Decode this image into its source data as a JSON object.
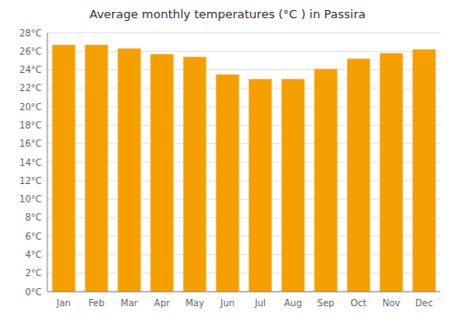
{
  "chart_data": {
    "type": "bar",
    "title": "Average monthly temperatures (°C ) in Passira",
    "categories": [
      "Jan",
      "Feb",
      "Mar",
      "Apr",
      "May",
      "Jun",
      "Jul",
      "Aug",
      "Sep",
      "Oct",
      "Nov",
      "Dec"
    ],
    "values": [
      26.7,
      26.7,
      26.3,
      25.7,
      25.4,
      23.5,
      23.0,
      23.0,
      24.1,
      25.2,
      25.8,
      26.2
    ],
    "color": "#F5A000",
    "ylim": [
      0,
      28
    ],
    "yticks": [
      {
        "value": 0,
        "label": "0°C"
      },
      {
        "value": 2,
        "label": "2°C"
      },
      {
        "value": 4,
        "label": "4°C"
      },
      {
        "value": 6,
        "label": "6°C"
      },
      {
        "value": 8,
        "label": "8°C"
      },
      {
        "value": 10,
        "label": "10°C"
      },
      {
        "value": 12,
        "label": "12°C"
      },
      {
        "value": 14,
        "label": "14°C"
      },
      {
        "value": 16,
        "label": "16°C"
      },
      {
        "value": 18,
        "label": "18°C"
      },
      {
        "value": 20,
        "label": "20°C"
      },
      {
        "value": 22,
        "label": "22°C"
      },
      {
        "value": 24,
        "label": "24°C"
      },
      {
        "value": 26,
        "label": "26°C"
      },
      {
        "value": 28,
        "label": "28°C"
      }
    ],
    "grid": true
  }
}
